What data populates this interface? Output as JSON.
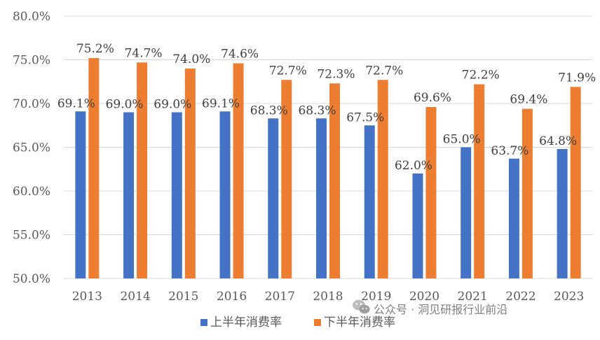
{
  "chart_data": {
    "type": "bar",
    "categories": [
      "2013",
      "2014",
      "2015",
      "2016",
      "2017",
      "2018",
      "2019",
      "2020",
      "2021",
      "2022",
      "2023"
    ],
    "series": [
      {
        "name": "上半年消费率",
        "color": "#4472C4",
        "values": [
          69.1,
          69.0,
          69.0,
          69.1,
          68.3,
          68.3,
          67.5,
          62.0,
          65.0,
          63.7,
          64.8
        ],
        "labels": [
          "69.1%",
          "69.0%",
          "69.0%",
          "69.1%",
          "68.3%",
          "68.3%",
          "67.5%",
          "62.0%",
          "65.0%",
          "63.7%",
          "64.8%"
        ]
      },
      {
        "name": "下半年消费率",
        "color": "#ED7D31",
        "values": [
          75.2,
          74.7,
          74.0,
          74.6,
          72.7,
          72.3,
          72.7,
          69.6,
          72.2,
          69.4,
          71.9
        ],
        "labels": [
          "75.2%",
          "74.7%",
          "74.0%",
          "74.6%",
          "72.7%",
          "72.3%",
          "72.7%",
          "69.6%",
          "72.2%",
          "69.4%",
          "71.9%"
        ]
      }
    ],
    "ylim": [
      50,
      80
    ],
    "yticks": [
      50,
      55,
      60,
      65,
      70,
      75,
      80
    ],
    "ytick_labels": [
      "50.0%",
      "55.0%",
      "60.0%",
      "65.0%",
      "70.0%",
      "75.0%",
      "80.0%"
    ],
    "grid": true,
    "gridline_color": "#D9D9D9",
    "legend_position": "bottom",
    "title": "",
    "xlabel": "",
    "ylabel": ""
  },
  "watermark": {
    "text": "公众号 · 洞见研报行业前沿",
    "icon": "wechat-icon"
  }
}
